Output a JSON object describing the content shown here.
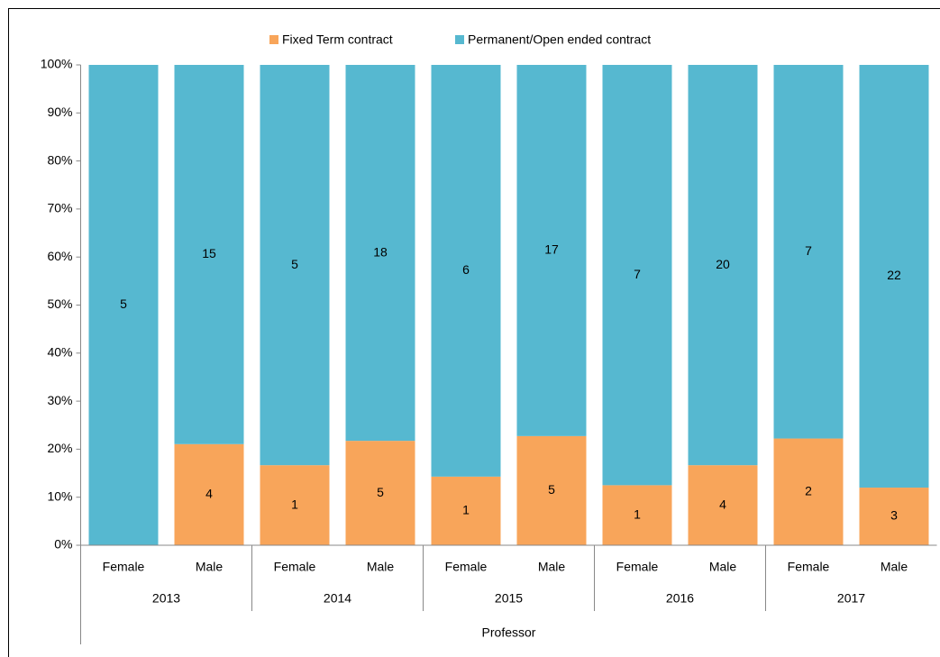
{
  "chart_data": {
    "type": "bar",
    "stacking": "percent",
    "categories": [
      "Female",
      "Male",
      "Female",
      "Male",
      "Female",
      "Male",
      "Female",
      "Male",
      "Female",
      "Male"
    ],
    "groups": [
      {
        "label": "2013",
        "span": 2
      },
      {
        "label": "2014",
        "span": 2
      },
      {
        "label": "2015",
        "span": 2
      },
      {
        "label": "2016",
        "span": 2
      },
      {
        "label": "2017",
        "span": 2
      }
    ],
    "super_group": "Professor",
    "series": [
      {
        "name": "Fixed Term contract",
        "color": "#f8a55a",
        "values": [
          0,
          4,
          1,
          5,
          1,
          5,
          1,
          4,
          2,
          3
        ]
      },
      {
        "name": "Permanent/Open ended contract",
        "color": "#56b8d0",
        "values": [
          5,
          15,
          5,
          18,
          6,
          17,
          7,
          20,
          7,
          22
        ]
      }
    ],
    "ylim": [
      0,
      100
    ],
    "yticks": [
      {
        "value": 0,
        "label": "0%"
      },
      {
        "value": 10,
        "label": "10%"
      },
      {
        "value": 20,
        "label": "20%"
      },
      {
        "value": 30,
        "label": "30%"
      },
      {
        "value": 40,
        "label": "40%"
      },
      {
        "value": 50,
        "label": "50%"
      },
      {
        "value": 60,
        "label": "60%"
      },
      {
        "value": 70,
        "label": "70%"
      },
      {
        "value": 80,
        "label": "80%"
      },
      {
        "value": 90,
        "label": "90%"
      },
      {
        "value": 100,
        "label": "100%"
      }
    ],
    "legend": "top"
  }
}
